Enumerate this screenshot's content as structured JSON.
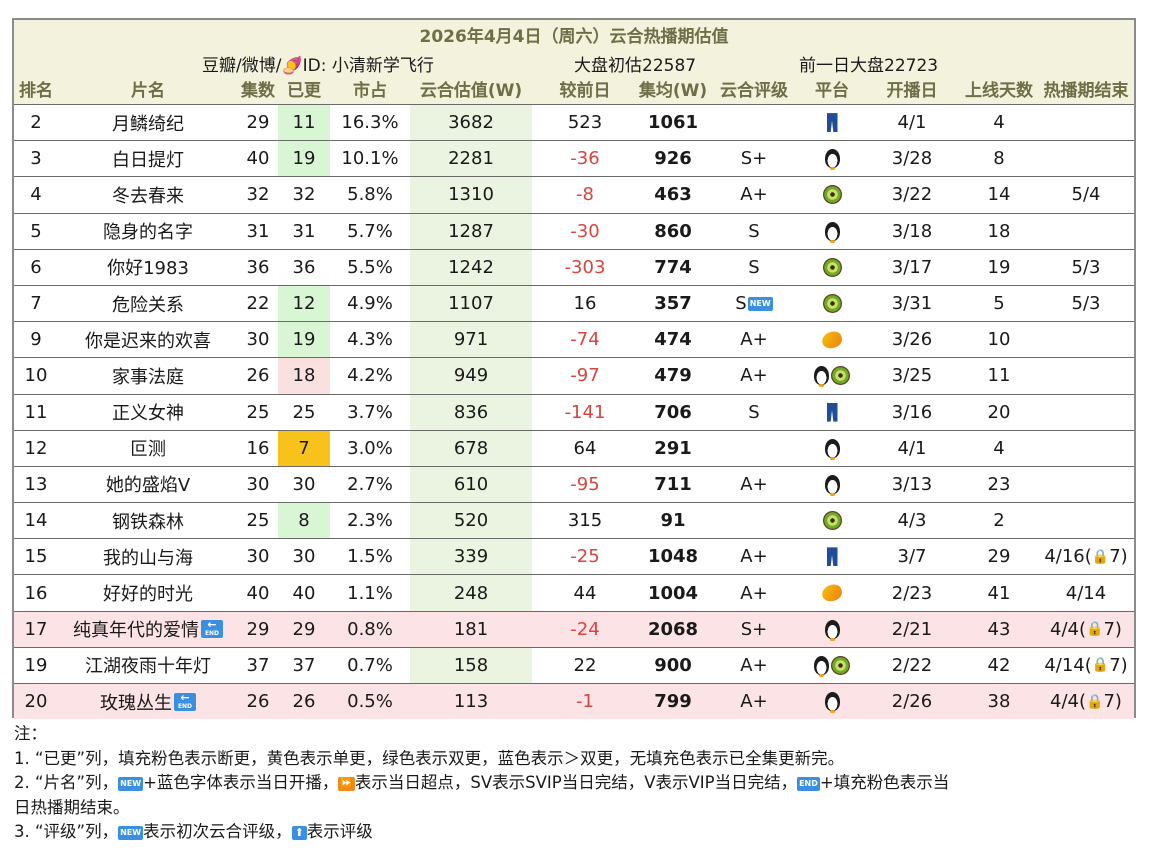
{
  "header": {
    "title": "2026年4月4日（周六）云合热播期估值",
    "source": "豆瓣/微博/🍠ID: 小清新学飞行",
    "market_total": "大盘初估22587",
    "market_prev": "前一日大盘22723"
  },
  "columns": {
    "rank": "排名",
    "name": "片名",
    "episodes": "集数",
    "updated": "已更",
    "share": "市占",
    "value": "云合估值(W)",
    "diff": "较前日",
    "avg": "集均(W)",
    "grade": "云合评级",
    "platform": "平台",
    "start": "开播日",
    "days": "上线天数",
    "end": "热播期结束"
  },
  "rows": [
    {
      "rank": "2",
      "name": "月鳞绮纪",
      "episodes": "29",
      "updated": "11",
      "updated_fill": "green",
      "share": "16.3%",
      "value": "3682",
      "diff": "523",
      "diff_negative": false,
      "avg": "1061",
      "grade": "",
      "grade_new": false,
      "platforms": [
        "jeans-icon"
      ],
      "start": "4/1",
      "days": "4",
      "end": "",
      "end_lock": "",
      "ended": false
    },
    {
      "rank": "3",
      "name": "白日提灯",
      "episodes": "40",
      "updated": "19",
      "updated_fill": "green",
      "share": "10.1%",
      "value": "2281",
      "diff": "-36",
      "diff_negative": true,
      "avg": "926",
      "grade": "S+",
      "grade_new": false,
      "platforms": [
        "penguin-icon"
      ],
      "start": "3/28",
      "days": "8",
      "end": "",
      "end_lock": "",
      "ended": false
    },
    {
      "rank": "4",
      "name": "冬去春来",
      "episodes": "32",
      "updated": "32",
      "updated_fill": "none",
      "share": "5.8%",
      "value": "1310",
      "diff": "-8",
      "diff_negative": true,
      "avg": "463",
      "grade": "A+",
      "grade_new": false,
      "platforms": [
        "kiwi-icon"
      ],
      "start": "3/22",
      "days": "14",
      "end": "5/4",
      "end_lock": "",
      "ended": false
    },
    {
      "rank": "5",
      "name": "隐身的名字",
      "episodes": "31",
      "updated": "31",
      "updated_fill": "none",
      "share": "5.7%",
      "value": "1287",
      "diff": "-30",
      "diff_negative": true,
      "avg": "860",
      "grade": "S",
      "grade_new": false,
      "platforms": [
        "penguin-icon"
      ],
      "start": "3/18",
      "days": "18",
      "end": "",
      "end_lock": "",
      "ended": false
    },
    {
      "rank": "6",
      "name": "你好1983",
      "episodes": "36",
      "updated": "36",
      "updated_fill": "none",
      "share": "5.5%",
      "value": "1242",
      "diff": "-303",
      "diff_negative": true,
      "avg": "774",
      "grade": "S",
      "grade_new": false,
      "platforms": [
        "kiwi-icon"
      ],
      "start": "3/17",
      "days": "19",
      "end": "5/3",
      "end_lock": "",
      "ended": false
    },
    {
      "rank": "7",
      "name": "危险关系",
      "episodes": "22",
      "updated": "12",
      "updated_fill": "green",
      "share": "4.9%",
      "value": "1107",
      "diff": "16",
      "diff_negative": false,
      "avg": "357",
      "grade": "S",
      "grade_new": true,
      "platforms": [
        "kiwi-icon"
      ],
      "start": "3/31",
      "days": "5",
      "end": "5/3",
      "end_lock": "",
      "ended": false
    },
    {
      "rank": "9",
      "name": "你是迟来的欢喜",
      "episodes": "30",
      "updated": "19",
      "updated_fill": "green",
      "share": "4.3%",
      "value": "971",
      "diff": "-74",
      "diff_negative": true,
      "avg": "474",
      "grade": "A+",
      "grade_new": false,
      "platforms": [
        "mango-icon"
      ],
      "start": "3/26",
      "days": "10",
      "end": "",
      "end_lock": "",
      "ended": false
    },
    {
      "rank": "10",
      "name": "家事法庭",
      "episodes": "26",
      "updated": "18",
      "updated_fill": "pink",
      "share": "4.2%",
      "value": "949",
      "diff": "-97",
      "diff_negative": true,
      "avg": "479",
      "grade": "A+",
      "grade_new": false,
      "platforms": [
        "penguin-icon",
        "kiwi-icon"
      ],
      "start": "3/25",
      "days": "11",
      "end": "",
      "end_lock": "",
      "ended": false
    },
    {
      "rank": "11",
      "name": "正义女神",
      "episodes": "25",
      "updated": "25",
      "updated_fill": "none",
      "share": "3.7%",
      "value": "836",
      "diff": "-141",
      "diff_negative": true,
      "avg": "706",
      "grade": "S",
      "grade_new": false,
      "platforms": [
        "jeans-icon"
      ],
      "start": "3/16",
      "days": "20",
      "end": "",
      "end_lock": "",
      "ended": false
    },
    {
      "rank": "12",
      "name": "叵测",
      "episodes": "16",
      "updated": "7",
      "updated_fill": "yellow",
      "share": "3.0%",
      "value": "678",
      "diff": "64",
      "diff_negative": false,
      "avg": "291",
      "grade": "",
      "grade_new": false,
      "platforms": [
        "penguin-icon"
      ],
      "start": "4/1",
      "days": "4",
      "end": "",
      "end_lock": "",
      "ended": false
    },
    {
      "rank": "13",
      "name": "她的盛焰V",
      "episodes": "30",
      "updated": "30",
      "updated_fill": "none",
      "share": "2.7%",
      "value": "610",
      "diff": "-95",
      "diff_negative": true,
      "avg": "711",
      "grade": "A+",
      "grade_new": false,
      "platforms": [
        "penguin-icon"
      ],
      "start": "3/13",
      "days": "23",
      "end": "",
      "end_lock": "",
      "ended": false
    },
    {
      "rank": "14",
      "name": "钢铁森林",
      "episodes": "25",
      "updated": "8",
      "updated_fill": "green",
      "share": "2.3%",
      "value": "520",
      "diff": "315",
      "diff_negative": false,
      "avg": "91",
      "grade": "",
      "grade_new": false,
      "platforms": [
        "kiwi-icon"
      ],
      "start": "4/3",
      "days": "2",
      "end": "",
      "end_lock": "",
      "ended": false
    },
    {
      "rank": "15",
      "name": "我的山与海",
      "episodes": "30",
      "updated": "30",
      "updated_fill": "none",
      "share": "1.5%",
      "value": "339",
      "diff": "-25",
      "diff_negative": true,
      "avg": "1048",
      "grade": "A+",
      "grade_new": false,
      "platforms": [
        "jeans-icon"
      ],
      "start": "3/7",
      "days": "29",
      "end": "4/16(",
      "end_lock": "7)",
      "ended": false
    },
    {
      "rank": "16",
      "name": "好好的时光",
      "episodes": "40",
      "updated": "40",
      "updated_fill": "none",
      "share": "1.1%",
      "value": "248",
      "diff": "44",
      "diff_negative": false,
      "avg": "1004",
      "grade": "A+",
      "grade_new": false,
      "platforms": [
        "mango-icon"
      ],
      "start": "2/23",
      "days": "41",
      "end": "4/14",
      "end_lock": "",
      "ended": false
    },
    {
      "rank": "17",
      "name": "纯真年代的爱情",
      "episodes": "29",
      "updated": "29",
      "updated_fill": "none",
      "share": "0.8%",
      "value": "181",
      "diff": "-24",
      "diff_negative": true,
      "avg": "2068",
      "grade": "S+",
      "grade_new": false,
      "platforms": [
        "penguin-icon"
      ],
      "start": "2/21",
      "days": "43",
      "end": "4/4(",
      "end_lock": "7)",
      "ended": true
    },
    {
      "rank": "19",
      "name": "江湖夜雨十年灯",
      "episodes": "37",
      "updated": "37",
      "updated_fill": "none",
      "share": "0.7%",
      "value": "158",
      "diff": "22",
      "diff_negative": false,
      "avg": "900",
      "grade": "A+",
      "grade_new": false,
      "platforms": [
        "penguin-icon",
        "kiwi-icon"
      ],
      "start": "2/22",
      "days": "42",
      "end": "4/14(",
      "end_lock": "7)",
      "ended": false
    },
    {
      "rank": "20",
      "name": "玫瑰丛生",
      "episodes": "26",
      "updated": "26",
      "updated_fill": "none",
      "share": "0.5%",
      "value": "113",
      "diff": "-1",
      "diff_negative": true,
      "avg": "799",
      "grade": "A+",
      "grade_new": false,
      "platforms": [
        "penguin-icon"
      ],
      "start": "2/26",
      "days": "38",
      "end": "4/4(",
      "end_lock": "7)",
      "ended": true
    }
  ],
  "badges": {
    "new": "NEW",
    "end": "END"
  },
  "notes": {
    "heading": "注：",
    "line1": "1. “已更”列，填充粉色表示断更，黄色表示单更，绿色表示双更，蓝色表示＞双更，无填充色表示已全集更新完。",
    "line2a": "2. “片名”列，",
    "line2b": "+蓝色字体表示当日开播，",
    "line2c": "表示当日超点，SV表示SVIP当日完结，V表示VIP当日完结，",
    "line2d": "+填充粉色表示当",
    "line2e": "日热播期结束。",
    "line3a": "3. “评级”列，",
    "line3b": "表示初次云合评级，",
    "line3c": "表示评级"
  }
}
